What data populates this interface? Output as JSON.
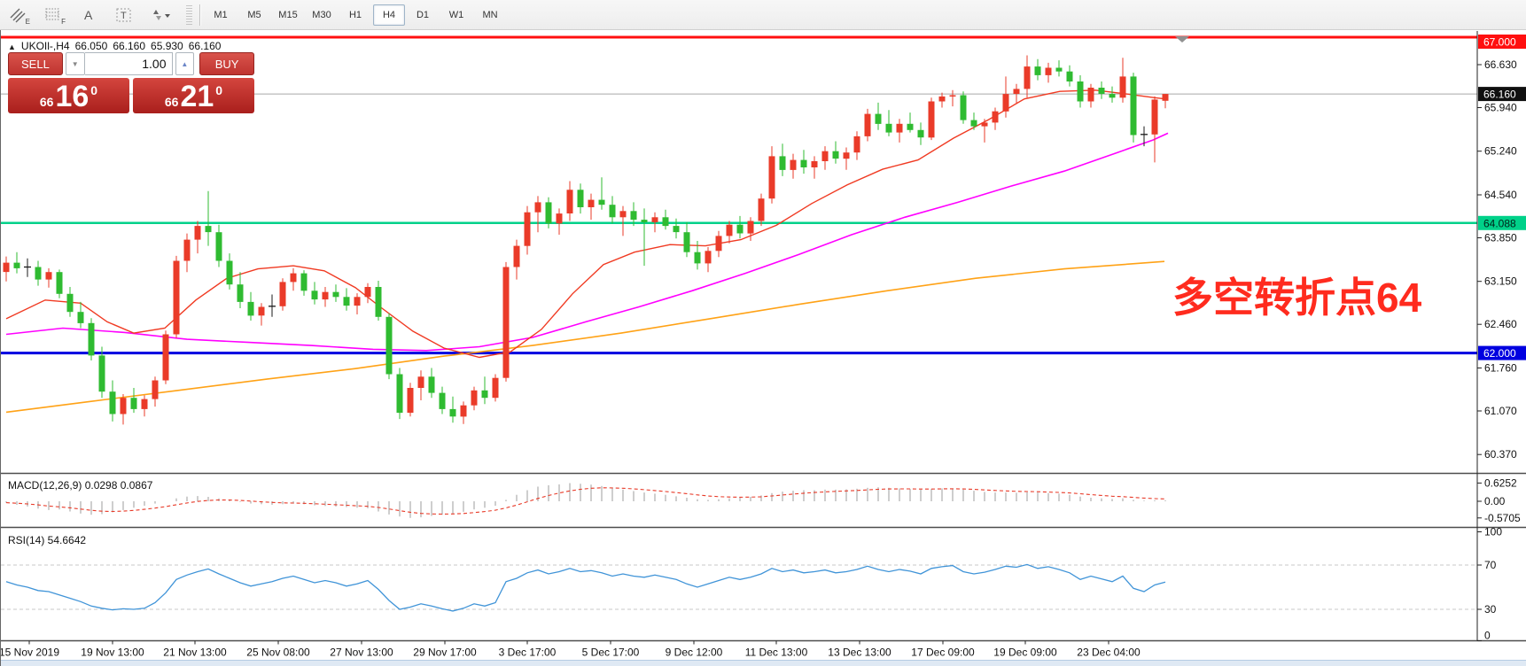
{
  "toolbar": {
    "icons": [
      {
        "name": "crosshatch-draw-tool",
        "sub": "E"
      },
      {
        "name": "grid-draw-tool",
        "sub": "F"
      },
      {
        "name": "text-label-tool",
        "label": "A"
      },
      {
        "name": "text-box-tool",
        "label": "T"
      },
      {
        "name": "arrange-objects-tool",
        "caret": "▾"
      }
    ],
    "timeframes": [
      "M1",
      "M5",
      "M15",
      "M30",
      "H1",
      "H4",
      "D1",
      "W1",
      "MN"
    ],
    "selected_timeframe": "H4"
  },
  "symbol_header": {
    "collapse_icon": "▲",
    "symbol": "UKOIl-,H4",
    "open": "66.050",
    "high": "66.160",
    "low": "65.930",
    "close": "66.160"
  },
  "trade_panel": {
    "sell_label": "SELL",
    "buy_label": "BUY",
    "volume": "1.00",
    "down_caret": "▼",
    "up_caret": "▲",
    "bid": {
      "prefix": "66",
      "big": "16",
      "sup": "0"
    },
    "ask": {
      "prefix": "66",
      "big": "21",
      "sup": "0"
    }
  },
  "annotation": {
    "text": "多空转折点64",
    "color": "#ff2b1e"
  },
  "price_axis": {
    "ticks": [
      {
        "label": "66.630",
        "price": 66.63
      },
      {
        "label": "65.940",
        "price": 65.94
      },
      {
        "label": "65.240",
        "price": 65.24
      },
      {
        "label": "64.540",
        "price": 64.54
      },
      {
        "label": "63.850",
        "price": 63.85
      },
      {
        "label": "63.150",
        "price": 63.15
      },
      {
        "label": "62.460",
        "price": 62.46
      },
      {
        "label": "61.760",
        "price": 61.76
      },
      {
        "label": "61.070",
        "price": 61.07
      },
      {
        "label": "60.370",
        "price": 60.37
      }
    ],
    "badges": [
      {
        "label": "67.000",
        "price": 67.0,
        "bg": "#ff0f0f",
        "fg": "#ffffff"
      },
      {
        "label": "66.160",
        "price": 66.16,
        "bg": "#101010",
        "fg": "#ffffff"
      },
      {
        "label": "64.088",
        "price": 64.088,
        "bg": "#00d189",
        "fg": "#00221a"
      },
      {
        "label": "62.000",
        "price": 62.0,
        "bg": "#0000e0",
        "fg": "#ffffff"
      }
    ]
  },
  "time_axis": {
    "labels": [
      "15 Nov 2019",
      "19 Nov 13:00",
      "21 Nov 13:00",
      "25 Nov 08:00",
      "27 Nov 13:00",
      "29 Nov 17:00",
      "3 Dec 17:00",
      "5 Dec 17:00",
      "9 Dec 12:00",
      "11 Dec 13:00",
      "13 Dec 13:00",
      "17 Dec 09:00",
      "19 Dec 09:00",
      "23 Dec 04:00"
    ],
    "xs": [
      32,
      126,
      219,
      313,
      407,
      501,
      594,
      688,
      782,
      875,
      969,
      1063,
      1156,
      1250
    ]
  },
  "indicators": {
    "macd_label": "MACD(12,26,9) 0.0298 0.0867",
    "macd_axis": [
      {
        "label": "0.6252",
        "value": 0.6252
      },
      {
        "label": "0.00",
        "value": 0
      },
      {
        "label": "-0.5705",
        "value": -0.5705
      }
    ],
    "rsi_label": "RSI(14) 54.6642",
    "rsi_axis": [
      {
        "label": "100",
        "value": 100
      },
      {
        "label": "70",
        "value": 70
      },
      {
        "label": "30",
        "value": 30
      },
      {
        "label": "0",
        "value": 0
      }
    ]
  },
  "chart_data": {
    "type": "candlestick",
    "symbol": "UKOIl-",
    "period": "H4",
    "colors": {
      "up": "#ea3b29",
      "down": "#2fbb31",
      "doji": "#1a1a1a",
      "ma_fast": "#f03a22",
      "ma_mid": "#ff00ff",
      "ma_slow": "#ffa216",
      "rsi": "#4094d8",
      "macd_hist": "#c2c2c2",
      "macd_signal": "#e83a28",
      "current_price_line": "#a8a8a8"
    },
    "levels": [
      {
        "price": 67.0,
        "color": "#ff0f0f",
        "width": 3
      },
      {
        "price": 64.088,
        "color": "#00d189",
        "width": 2.5
      },
      {
        "price": 62.0,
        "color": "#0000e0",
        "width": 3
      },
      {
        "price": 66.16,
        "color": "#a8a8a8",
        "width": 1
      }
    ],
    "rsi_levels": [
      70,
      30
    ],
    "candles": [
      [
        63.3,
        63.55,
        63.15,
        63.45
      ],
      [
        63.45,
        63.62,
        63.28,
        63.36
      ],
      [
        63.37,
        63.52,
        63.22,
        63.38
      ],
      [
        63.38,
        63.48,
        63.08,
        63.18
      ],
      [
        63.18,
        63.36,
        63.05,
        63.3
      ],
      [
        63.3,
        63.34,
        62.88,
        62.95
      ],
      [
        62.95,
        63.06,
        62.58,
        62.66
      ],
      [
        62.66,
        62.82,
        62.4,
        62.48
      ],
      [
        62.48,
        62.56,
        61.88,
        61.96
      ],
      [
        61.96,
        62.1,
        61.28,
        61.38
      ],
      [
        61.38,
        61.56,
        60.9,
        61.02
      ],
      [
        61.02,
        61.34,
        60.85,
        61.28
      ],
      [
        61.28,
        61.44,
        61.04,
        61.1
      ],
      [
        61.1,
        61.32,
        60.98,
        61.26
      ],
      [
        61.26,
        61.62,
        61.14,
        61.56
      ],
      [
        61.56,
        62.36,
        61.5,
        62.3
      ],
      [
        62.3,
        63.56,
        62.24,
        63.48
      ],
      [
        63.48,
        63.92,
        63.3,
        63.82
      ],
      [
        63.82,
        64.12,
        63.6,
        64.04
      ],
      [
        64.04,
        64.6,
        63.72,
        63.94
      ],
      [
        63.94,
        64.06,
        63.38,
        63.48
      ],
      [
        63.48,
        63.6,
        63.02,
        63.1
      ],
      [
        63.1,
        63.3,
        62.72,
        62.82
      ],
      [
        62.82,
        62.98,
        62.52,
        62.6
      ],
      [
        62.6,
        62.8,
        62.44,
        62.74
      ],
      [
        62.74,
        62.94,
        62.58,
        62.75
      ],
      [
        62.75,
        63.2,
        62.68,
        63.14
      ],
      [
        63.14,
        63.36,
        63.0,
        63.28
      ],
      [
        63.28,
        63.33,
        62.92,
        63.0
      ],
      [
        63.0,
        63.14,
        62.78,
        62.86
      ],
      [
        62.86,
        63.06,
        62.74,
        62.98
      ],
      [
        62.98,
        63.1,
        62.82,
        62.9
      ],
      [
        62.9,
        63.04,
        62.68,
        62.76
      ],
      [
        62.76,
        62.96,
        62.62,
        62.9
      ],
      [
        62.9,
        63.12,
        62.8,
        63.06
      ],
      [
        63.06,
        63.16,
        62.52,
        62.58
      ],
      [
        62.58,
        62.64,
        61.58,
        61.66
      ],
      [
        61.66,
        61.76,
        60.94,
        61.04
      ],
      [
        61.04,
        61.52,
        60.98,
        61.44
      ],
      [
        61.44,
        61.72,
        61.24,
        61.62
      ],
      [
        61.62,
        61.76,
        61.28,
        61.36
      ],
      [
        61.36,
        61.46,
        61.02,
        61.1
      ],
      [
        61.1,
        61.3,
        60.88,
        60.98
      ],
      [
        60.98,
        61.22,
        60.86,
        61.16
      ],
      [
        61.16,
        61.46,
        61.08,
        61.4
      ],
      [
        61.4,
        61.62,
        61.18,
        61.28
      ],
      [
        61.28,
        61.66,
        61.22,
        61.6
      ],
      [
        61.6,
        63.46,
        61.54,
        63.38
      ],
      [
        63.38,
        63.82,
        63.18,
        63.72
      ],
      [
        63.72,
        64.36,
        63.58,
        64.26
      ],
      [
        64.26,
        64.52,
        63.94,
        64.42
      ],
      [
        64.42,
        64.5,
        64.0,
        64.08
      ],
      [
        64.08,
        64.32,
        63.9,
        64.24
      ],
      [
        64.24,
        64.76,
        64.12,
        64.62
      ],
      [
        64.62,
        64.72,
        64.24,
        64.34
      ],
      [
        64.34,
        64.56,
        64.14,
        64.46
      ],
      [
        64.46,
        64.82,
        64.3,
        64.38
      ],
      [
        64.38,
        64.52,
        64.08,
        64.18
      ],
      [
        64.18,
        64.36,
        63.88,
        64.28
      ],
      [
        64.28,
        64.42,
        64.04,
        64.14
      ],
      [
        64.14,
        64.32,
        63.4,
        64.1
      ],
      [
        64.1,
        64.26,
        63.94,
        64.18
      ],
      [
        64.18,
        64.3,
        63.98,
        64.04
      ],
      [
        64.04,
        64.16,
        63.84,
        63.94
      ],
      [
        63.94,
        64.1,
        63.54,
        63.62
      ],
      [
        63.62,
        63.8,
        63.34,
        63.44
      ],
      [
        63.44,
        63.7,
        63.3,
        63.64
      ],
      [
        63.64,
        63.96,
        63.54,
        63.88
      ],
      [
        63.88,
        64.12,
        63.76,
        64.06
      ],
      [
        64.06,
        64.2,
        63.84,
        63.92
      ],
      [
        63.92,
        64.18,
        63.8,
        64.12
      ],
      [
        64.12,
        64.56,
        64.04,
        64.48
      ],
      [
        64.48,
        65.32,
        64.4,
        65.16
      ],
      [
        65.16,
        65.36,
        64.84,
        64.94
      ],
      [
        64.94,
        65.2,
        64.8,
        65.1
      ],
      [
        65.1,
        65.26,
        64.88,
        64.98
      ],
      [
        64.98,
        65.16,
        64.8,
        65.08
      ],
      [
        65.08,
        65.32,
        64.94,
        65.24
      ],
      [
        65.24,
        65.4,
        65.04,
        65.12
      ],
      [
        65.12,
        65.3,
        64.94,
        65.22
      ],
      [
        65.22,
        65.56,
        65.1,
        65.48
      ],
      [
        65.48,
        65.92,
        65.4,
        65.84
      ],
      [
        65.84,
        66.02,
        65.58,
        65.68
      ],
      [
        65.68,
        65.9,
        65.48,
        65.54
      ],
      [
        65.54,
        65.76,
        65.38,
        65.68
      ],
      [
        65.68,
        65.86,
        65.54,
        65.58
      ],
      [
        65.58,
        65.7,
        65.34,
        65.46
      ],
      [
        65.46,
        66.1,
        65.42,
        66.04
      ],
      [
        66.04,
        66.18,
        65.94,
        66.12
      ],
      [
        66.12,
        66.22,
        65.96,
        66.14
      ],
      [
        66.14,
        66.2,
        65.68,
        65.74
      ],
      [
        65.74,
        65.86,
        65.58,
        65.64
      ],
      [
        65.64,
        65.76,
        65.38,
        65.7
      ],
      [
        65.7,
        65.94,
        65.58,
        65.88
      ],
      [
        65.88,
        66.44,
        65.78,
        66.16
      ],
      [
        66.16,
        66.32,
        66.0,
        66.24
      ],
      [
        66.24,
        66.78,
        66.1,
        66.6
      ],
      [
        66.6,
        66.72,
        66.38,
        66.46
      ],
      [
        66.46,
        66.66,
        66.34,
        66.58
      ],
      [
        66.58,
        66.7,
        66.44,
        66.52
      ],
      [
        66.52,
        66.62,
        66.28,
        66.36
      ],
      [
        66.36,
        66.46,
        65.94,
        66.04
      ],
      [
        66.04,
        66.32,
        65.94,
        66.26
      ],
      [
        66.26,
        66.36,
        66.08,
        66.16
      ],
      [
        66.16,
        66.28,
        66.02,
        66.1
      ],
      [
        66.1,
        66.74,
        66.02,
        66.44
      ],
      [
        66.44,
        66.5,
        65.38,
        65.5
      ],
      [
        65.5,
        65.64,
        65.32,
        65.51
      ],
      [
        65.51,
        66.12,
        65.06,
        66.07
      ],
      [
        66.05,
        66.16,
        65.93,
        66.16
      ]
    ],
    "ma_fast": [
      [
        6,
        62.55
      ],
      [
        50,
        62.85
      ],
      [
        90,
        62.8
      ],
      [
        120,
        62.5
      ],
      [
        150,
        62.32
      ],
      [
        185,
        62.4
      ],
      [
        220,
        62.85
      ],
      [
        255,
        63.2
      ],
      [
        290,
        63.35
      ],
      [
        330,
        63.4
      ],
      [
        365,
        63.32
      ],
      [
        400,
        63.05
      ],
      [
        430,
        62.72
      ],
      [
        465,
        62.35
      ],
      [
        500,
        62.08
      ],
      [
        540,
        61.93
      ],
      [
        575,
        62.02
      ],
      [
        610,
        62.38
      ],
      [
        645,
        62.95
      ],
      [
        680,
        63.42
      ],
      [
        715,
        63.62
      ],
      [
        755,
        63.74
      ],
      [
        795,
        63.72
      ],
      [
        835,
        63.82
      ],
      [
        875,
        64.05
      ],
      [
        915,
        64.4
      ],
      [
        955,
        64.7
      ],
      [
        995,
        64.95
      ],
      [
        1035,
        65.1
      ],
      [
        1075,
        65.45
      ],
      [
        1115,
        65.75
      ],
      [
        1155,
        66.08
      ],
      [
        1195,
        66.2
      ],
      [
        1235,
        66.22
      ],
      [
        1270,
        66.16
      ],
      [
        1302,
        66.1
      ],
      [
        1314,
        66.08
      ]
    ],
    "ma_mid": [
      [
        6,
        62.3
      ],
      [
        70,
        62.4
      ],
      [
        140,
        62.33
      ],
      [
        210,
        62.22
      ],
      [
        280,
        62.17
      ],
      [
        350,
        62.12
      ],
      [
        420,
        62.06
      ],
      [
        480,
        62.04
      ],
      [
        540,
        62.1
      ],
      [
        600,
        62.25
      ],
      [
        660,
        62.5
      ],
      [
        720,
        62.74
      ],
      [
        780,
        63.0
      ],
      [
        840,
        63.28
      ],
      [
        900,
        63.58
      ],
      [
        960,
        63.9
      ],
      [
        1020,
        64.18
      ],
      [
        1080,
        64.42
      ],
      [
        1140,
        64.68
      ],
      [
        1200,
        64.92
      ],
      [
        1260,
        65.22
      ],
      [
        1300,
        65.42
      ],
      [
        1317,
        65.53
      ]
    ],
    "ma_slow": [
      [
        6,
        61.05
      ],
      [
        100,
        61.22
      ],
      [
        200,
        61.4
      ],
      [
        300,
        61.58
      ],
      [
        400,
        61.75
      ],
      [
        500,
        61.95
      ],
      [
        600,
        62.12
      ],
      [
        700,
        62.32
      ],
      [
        800,
        62.55
      ],
      [
        900,
        62.78
      ],
      [
        1000,
        63.0
      ],
      [
        1100,
        63.2
      ],
      [
        1200,
        63.35
      ],
      [
        1313,
        63.47
      ]
    ],
    "macd_hist": [
      -0.05,
      -0.12,
      -0.18,
      -0.25,
      -0.3,
      -0.28,
      -0.35,
      -0.42,
      -0.46,
      -0.44,
      -0.38,
      -0.3,
      -0.22,
      -0.15,
      -0.08,
      0.0,
      0.1,
      0.16,
      0.18,
      0.15,
      0.1,
      0.04,
      -0.02,
      -0.08,
      -0.1,
      -0.12,
      -0.1,
      -0.08,
      -0.1,
      -0.14,
      -0.16,
      -0.18,
      -0.2,
      -0.22,
      -0.24,
      -0.35,
      -0.45,
      -0.52,
      -0.57,
      -0.55,
      -0.5,
      -0.46,
      -0.42,
      -0.36,
      -0.28,
      -0.22,
      -0.15,
      0.05,
      0.22,
      0.38,
      0.5,
      0.55,
      0.58,
      0.62,
      0.6,
      0.57,
      0.52,
      0.45,
      0.4,
      0.35,
      0.3,
      0.26,
      0.22,
      0.17,
      0.12,
      0.07,
      0.05,
      0.07,
      0.1,
      0.12,
      0.15,
      0.2,
      0.28,
      0.33,
      0.36,
      0.38,
      0.38,
      0.4,
      0.4,
      0.41,
      0.43,
      0.46,
      0.48,
      0.46,
      0.44,
      0.42,
      0.4,
      0.42,
      0.44,
      0.44,
      0.4,
      0.36,
      0.32,
      0.3,
      0.3,
      0.29,
      0.31,
      0.3,
      0.28,
      0.26,
      0.22,
      0.16,
      0.12,
      0.1,
      0.08,
      0.1,
      0.05,
      0.02,
      0.03,
      0.03
    ],
    "rsi": [
      55,
      52,
      50,
      47,
      46,
      43,
      40,
      37,
      33,
      31,
      29.5,
      30.5,
      30,
      31,
      36,
      45,
      57,
      61,
      64,
      66.5,
      62,
      58,
      54,
      51,
      53,
      55,
      58,
      60,
      57,
      54,
      56,
      54,
      51,
      53,
      56,
      48,
      38,
      30,
      32,
      35,
      33,
      30.5,
      28.5,
      31,
      35,
      33,
      36,
      55,
      58,
      63,
      65.5,
      62,
      64,
      67,
      64,
      65,
      63,
      60,
      62,
      60,
      59,
      61,
      59,
      57,
      53,
      50,
      53,
      56,
      59,
      57,
      59,
      62,
      67,
      64,
      65.5,
      63,
      64,
      65.5,
      63,
      64,
      66,
      69,
      66,
      64,
      66,
      64.5,
      62,
      67,
      68.5,
      69.5,
      64,
      62,
      63.5,
      66,
      69,
      68,
      70.5,
      67,
      68.5,
      66,
      63,
      57,
      60,
      57.5,
      55,
      60,
      49,
      46,
      52,
      54.66
    ]
  }
}
